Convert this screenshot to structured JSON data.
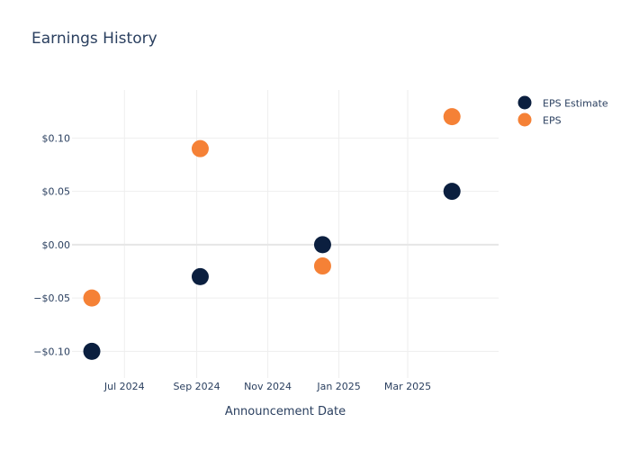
{
  "chart_data": {
    "type": "scatter",
    "title": "Earnings History",
    "xlabel": "Announcement Date",
    "ylabel": "",
    "x_ticks": [
      "Jul 2024",
      "Sep 2024",
      "Nov 2024",
      "Jan 2025",
      "Mar 2025"
    ],
    "y_ticks": [
      "$0.10",
      "$0.05",
      "$0.00",
      "−$0.05",
      "−$0.10"
    ],
    "y_tick_values": [
      0.1,
      0.05,
      0.0,
      -0.05,
      -0.1
    ],
    "xlim": [
      "2024-05-17",
      "2025-05-18"
    ],
    "ylim": [
      -0.125,
      0.145
    ],
    "grid": true,
    "legend_position": "top-right",
    "series": [
      {
        "name": "EPS Estimate",
        "color": "#0b1f3f",
        "x": [
          "2024-06-03",
          "2024-09-04",
          "2024-12-18",
          "2025-04-08"
        ],
        "y": [
          -0.1,
          -0.03,
          0.0,
          0.05
        ]
      },
      {
        "name": "EPS",
        "color": "#f58136",
        "x": [
          "2024-06-03",
          "2024-09-04",
          "2024-12-18",
          "2025-04-08"
        ],
        "y": [
          -0.05,
          0.09,
          -0.02,
          0.12
        ]
      }
    ]
  }
}
